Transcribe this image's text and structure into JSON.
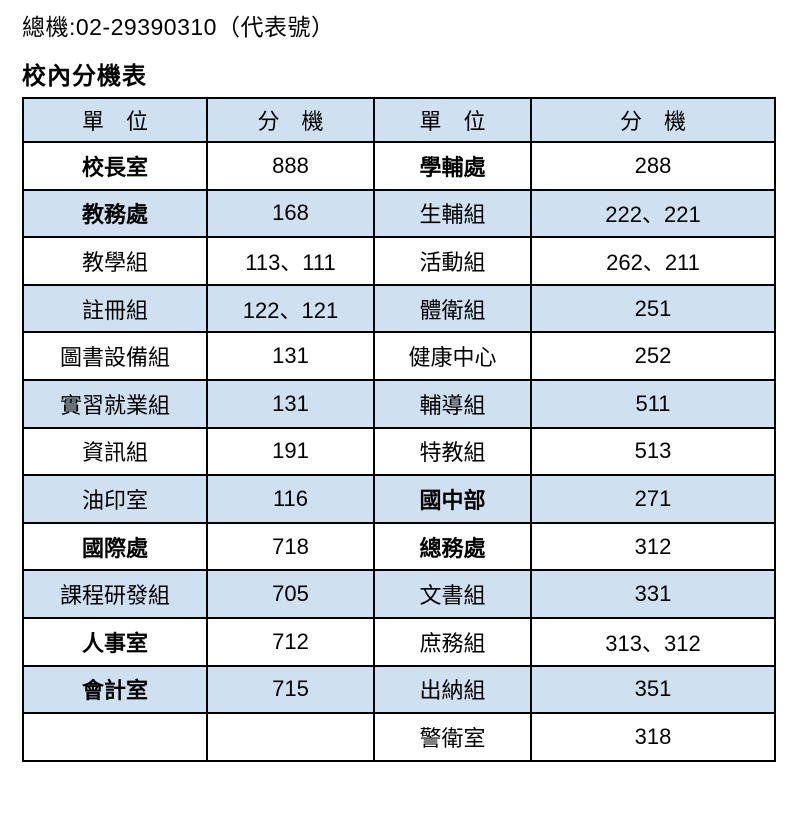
{
  "header": {
    "switchboard_line": "總機:02-29390310（代表號）",
    "table_title": "校內分機表"
  },
  "table": {
    "headers": [
      "單　位",
      "分　機",
      "單　位",
      "分　機"
    ],
    "rows": [
      {
        "cells": [
          "校長室",
          "888",
          "學輔處",
          "288"
        ],
        "bold": [
          true,
          false,
          true,
          false
        ],
        "shaded": false
      },
      {
        "cells": [
          "教務處",
          "168",
          "生輔組",
          "222、221"
        ],
        "bold": [
          true,
          false,
          false,
          false
        ],
        "shaded": true
      },
      {
        "cells": [
          "教學組",
          "113、111",
          "活動組",
          "262、211"
        ],
        "bold": [
          false,
          false,
          false,
          false
        ],
        "shaded": false
      },
      {
        "cells": [
          "註冊組",
          "122、121",
          "體衛組",
          "251"
        ],
        "bold": [
          false,
          false,
          false,
          false
        ],
        "shaded": true
      },
      {
        "cells": [
          "圖書設備組",
          "131",
          "健康中心",
          "252"
        ],
        "bold": [
          false,
          false,
          false,
          false
        ],
        "shaded": false
      },
      {
        "cells": [
          "實習就業組",
          "131",
          "輔導組",
          "511"
        ],
        "bold": [
          false,
          false,
          false,
          false
        ],
        "shaded": true
      },
      {
        "cells": [
          "資訊組",
          "191",
          "特教組",
          "513"
        ],
        "bold": [
          false,
          false,
          false,
          false
        ],
        "shaded": false
      },
      {
        "cells": [
          "油印室",
          "116",
          "國中部",
          "271"
        ],
        "bold": [
          false,
          false,
          true,
          false
        ],
        "shaded": true
      },
      {
        "cells": [
          "國際處",
          "718",
          "總務處",
          "312"
        ],
        "bold": [
          true,
          false,
          true,
          false
        ],
        "shaded": false
      },
      {
        "cells": [
          "課程研發組",
          "705",
          "文書組",
          "331"
        ],
        "bold": [
          false,
          false,
          false,
          false
        ],
        "shaded": true
      },
      {
        "cells": [
          "人事室",
          "712",
          "庶務組",
          "313、312"
        ],
        "bold": [
          true,
          false,
          false,
          false
        ],
        "shaded": false
      },
      {
        "cells": [
          "會計室",
          "715",
          "出納組",
          "351"
        ],
        "bold": [
          true,
          false,
          false,
          false
        ],
        "shaded": true
      },
      {
        "cells": [
          "",
          "",
          "警衛室",
          "318"
        ],
        "bold": [
          false,
          false,
          false,
          false
        ],
        "shaded": false
      }
    ],
    "colors": {
      "header_bg": "#cfe0f1",
      "shaded_row_bg": "#cfe0f1",
      "border": "#000000",
      "text": "#000000",
      "page_bg": "#ffffff"
    }
  }
}
